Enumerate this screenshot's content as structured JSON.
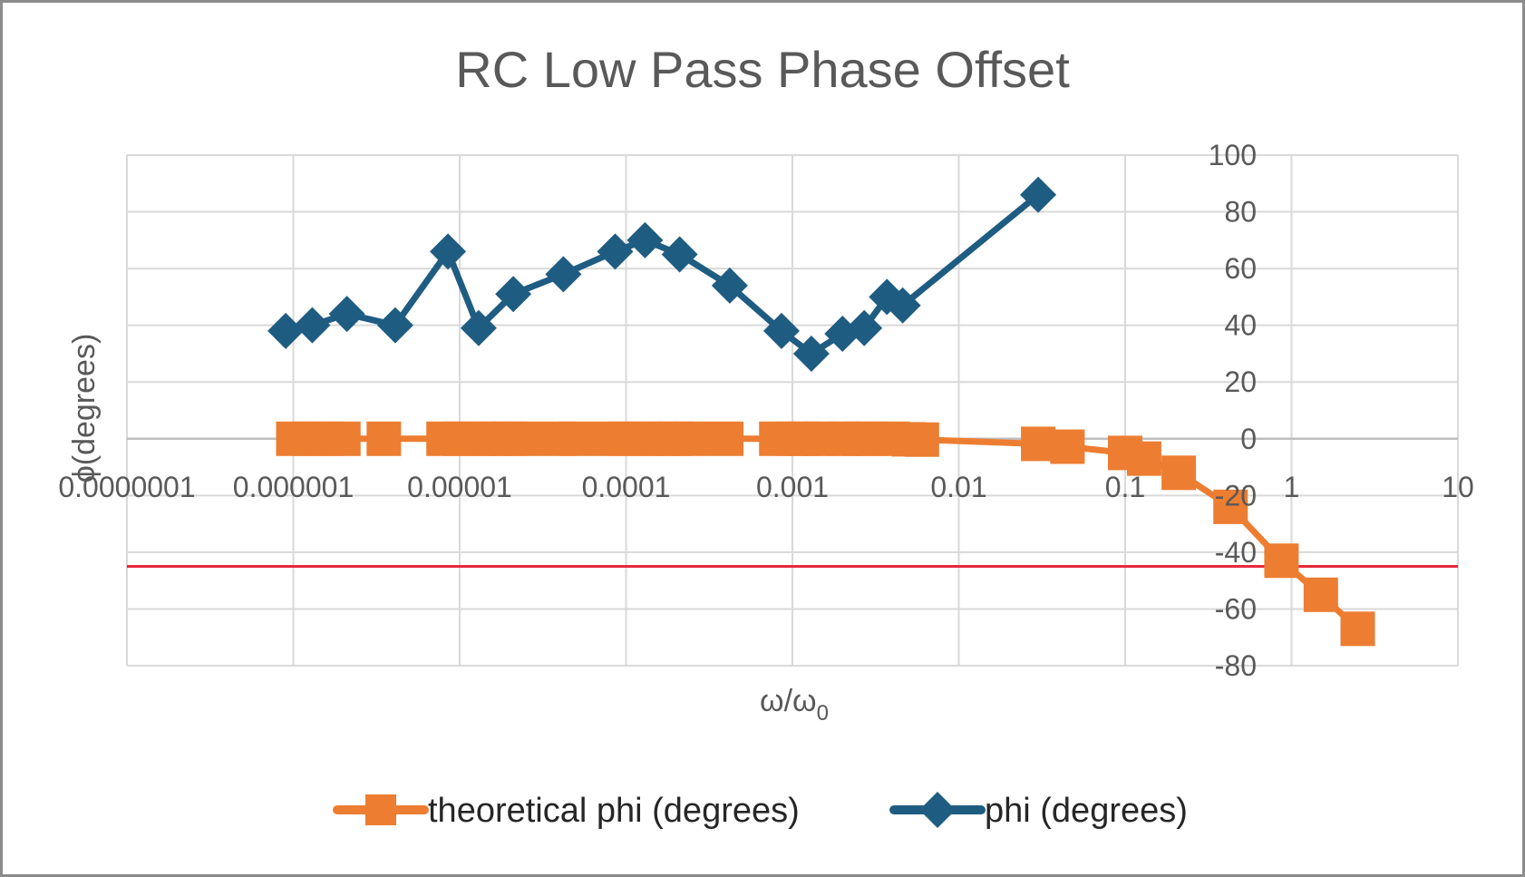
{
  "chart_data": {
    "type": "line",
    "title": "RC Low Pass Phase Offset",
    "xlabel": "ω/ω",
    "xlabel_subscript": "0",
    "ylabel": "ϕ(degrees)",
    "x_scale": "log",
    "xlim": [
      1e-07,
      10
    ],
    "ylim": [
      -80,
      100
    ],
    "x_ticks": [
      1e-07,
      1e-06,
      1e-05,
      0.0001,
      0.001,
      0.01,
      0.1,
      1,
      10
    ],
    "x_tick_labels": [
      "0.0000001",
      "0.000001",
      "0.00001",
      "0.0001",
      "0.001",
      "0.01",
      "0.1",
      "1",
      "10"
    ],
    "y_ticks": [
      -80,
      -60,
      -40,
      -20,
      0,
      20,
      40,
      60,
      80,
      100
    ],
    "y_tick_labels": [
      "-80",
      "-60",
      "-40",
      "-20",
      "0",
      "20",
      "40",
      "60",
      "80",
      "100"
    ],
    "grid": true,
    "legend_position": "bottom",
    "reference_line": {
      "y": -45,
      "color": "#e8283c"
    },
    "series": [
      {
        "name": "theoretical phi (degrees)",
        "color": "#ed7d31",
        "marker": "square",
        "points": [
          [
            1e-06,
            0
          ],
          [
            1.25e-06,
            0
          ],
          [
            1.6e-06,
            0
          ],
          [
            2e-06,
            0
          ],
          [
            3.5e-06,
            0
          ],
          [
            8e-06,
            0
          ],
          [
            1e-05,
            0
          ],
          [
            1.3e-05,
            0
          ],
          [
            1.6e-05,
            0
          ],
          [
            2e-05,
            0
          ],
          [
            2.5e-05,
            0
          ],
          [
            4e-05,
            0
          ],
          [
            5e-05,
            0
          ],
          [
            8e-05,
            0
          ],
          [
            0.0001,
            0
          ],
          [
            0.00013,
            0
          ],
          [
            0.00016,
            0
          ],
          [
            0.0002,
            0
          ],
          [
            0.00025,
            0
          ],
          [
            0.0004,
            0
          ],
          [
            0.0008,
            0
          ],
          [
            0.001,
            0
          ],
          [
            0.0012,
            0
          ],
          [
            0.0015,
            0
          ],
          [
            0.002,
            0
          ],
          [
            0.0025,
            0
          ],
          [
            0.003,
            0
          ],
          [
            0.004,
            0
          ],
          [
            0.005,
            -0.2
          ],
          [
            0.006,
            -0.3
          ],
          [
            0.03,
            -1.8
          ],
          [
            0.045,
            -2.8
          ],
          [
            0.1,
            -5
          ],
          [
            0.13,
            -7
          ],
          [
            0.21,
            -12
          ],
          [
            0.43,
            -24
          ],
          [
            0.87,
            -43
          ],
          [
            1.5,
            -55
          ],
          [
            2.5,
            -67
          ]
        ]
      },
      {
        "name": "phi (degrees)",
        "color": "#1f5c82",
        "marker": "diamond",
        "points": [
          [
            9e-07,
            38
          ],
          [
            1.3e-06,
            40
          ],
          [
            2.1e-06,
            44
          ],
          [
            4.1e-06,
            40
          ],
          [
            8.5e-06,
            66
          ],
          [
            1.3e-05,
            39
          ],
          [
            2.1e-05,
            51
          ],
          [
            4.2e-05,
            58
          ],
          [
            8.6e-05,
            66
          ],
          [
            0.00013,
            70
          ],
          [
            0.00021,
            65
          ],
          [
            0.00042,
            54
          ],
          [
            0.00086,
            38
          ],
          [
            0.0013,
            30
          ],
          [
            0.002,
            37
          ],
          [
            0.0027,
            39
          ],
          [
            0.0037,
            50
          ],
          [
            0.0046,
            47
          ],
          [
            0.03,
            86
          ]
        ]
      }
    ]
  }
}
